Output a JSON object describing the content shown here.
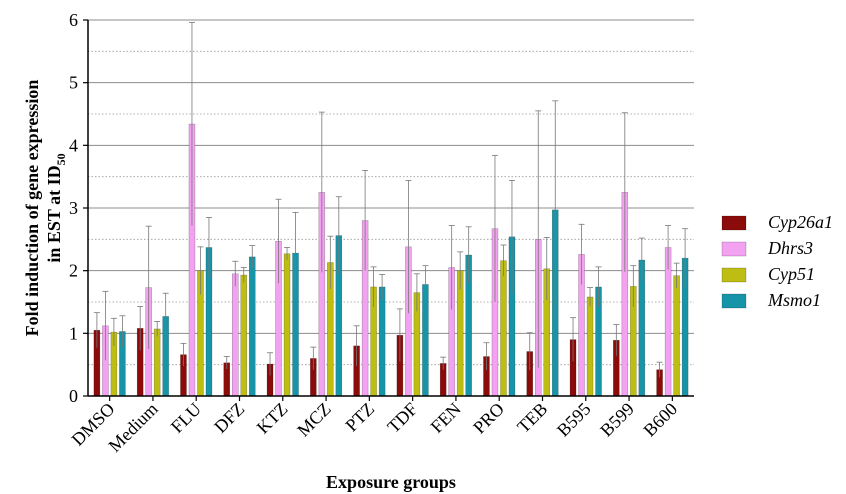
{
  "chart_data": {
    "type": "bar",
    "xlabel": "Exposure groups",
    "ylabel_main": "Fold induction of gene expression",
    "ylabel_line2": "in  EST at ID",
    "ylabel_sub": "50",
    "ylim": [
      0,
      6
    ],
    "yticks": [
      "0",
      "1",
      "2",
      "3",
      "4",
      "5",
      "6"
    ],
    "grid": "horizontal, solid at integers, dotted at halves",
    "legend": "right",
    "categories": [
      "DMSO",
      "Medium",
      "FLU",
      "DFZ",
      "KTZ",
      "MCZ",
      "PTZ",
      "TDF",
      "FEN",
      "PRO",
      "TEB",
      "B595",
      "B599",
      "B600"
    ],
    "series": [
      {
        "name": "Cyp26a1",
        "color": "#8B0A0A",
        "values": [
          1.05,
          1.08,
          0.66,
          0.53,
          0.51,
          0.6,
          0.8,
          0.97,
          0.52,
          0.63,
          0.71,
          0.9,
          0.89,
          0.42
        ],
        "errors": [
          0.28,
          0.35,
          0.18,
          0.1,
          0.18,
          0.18,
          0.32,
          0.42,
          0.1,
          0.22,
          0.3,
          0.35,
          0.25,
          0.12
        ]
      },
      {
        "name": "Dhrs3",
        "color": "#F2A2F0",
        "values": [
          1.12,
          1.73,
          4.34,
          1.95,
          2.47,
          3.25,
          2.8,
          2.38,
          2.05,
          2.67,
          2.5,
          2.26,
          3.25,
          2.37
        ],
        "errors": [
          0.55,
          0.98,
          1.62,
          0.2,
          0.67,
          1.28,
          0.8,
          1.06,
          0.67,
          1.17,
          2.05,
          0.48,
          1.27,
          0.35
        ]
      },
      {
        "name": "Cyp51",
        "color": "#BDBD12",
        "values": [
          1.02,
          1.07,
          2.0,
          1.93,
          2.27,
          2.13,
          1.74,
          1.65,
          2.0,
          2.16,
          2.03,
          1.58,
          1.75,
          1.92
        ]
      },
      {
        "name": "Msmo1",
        "color": "#1795A8",
        "values": [
          1.03,
          1.27,
          2.37,
          2.22,
          2.28,
          2.56,
          1.74,
          1.78,
          2.25,
          2.54,
          2.97,
          1.74,
          2.17,
          2.2
        ],
        "errors": [
          0.25,
          0.37,
          0.48,
          0.18,
          0.65,
          0.62,
          0.2,
          0.3,
          0.45,
          0.9,
          1.74,
          0.32,
          0.35,
          0.47
        ]
      }
    ],
    "cyp51_errors": [
      0.22,
      0.12,
      0.38,
      0.12,
      0.1,
      0.42,
      0.32,
      0.3,
      0.3,
      0.25,
      0.5,
      0.15,
      0.33,
      0.2
    ]
  }
}
